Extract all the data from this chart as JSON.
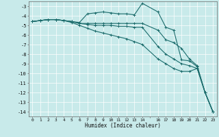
{
  "xlabel": "Humidex (Indice chaleur)",
  "bg_color": "#c8eaea",
  "grid_color": "#ffffff",
  "line_color": "#1a6b6b",
  "xlim": [
    -0.5,
    23.5
  ],
  "ylim": [
    -14.5,
    -2.5
  ],
  "yticks": [
    -3,
    -4,
    -5,
    -6,
    -7,
    -8,
    -9,
    -10,
    -11,
    -12,
    -13,
    -14
  ],
  "xtick_labels": [
    "0",
    "1",
    "2",
    "3",
    "4",
    "5",
    "6",
    "7",
    "8",
    "9",
    "10",
    "11",
    "12",
    "13",
    "14",
    "",
    "16",
    "17",
    "18",
    "19",
    "20",
    "21",
    "22",
    "23"
  ],
  "lines": [
    {
      "x": [
        0,
        1,
        2,
        3,
        4,
        5,
        6,
        7,
        8,
        9,
        10,
        11,
        12,
        13,
        14,
        16,
        17,
        18,
        19,
        20,
        21,
        22,
        23
      ],
      "y": [
        -4.6,
        -4.5,
        -4.4,
        -4.4,
        -4.5,
        -4.6,
        -4.7,
        -3.8,
        -3.7,
        -3.6,
        -3.7,
        -3.8,
        -3.8,
        -3.9,
        -2.7,
        -3.6,
        -5.2,
        -5.5,
        -8.6,
        -8.7,
        -9.3,
        -12.0,
        -14.0
      ]
    },
    {
      "x": [
        0,
        1,
        2,
        3,
        4,
        5,
        6,
        7,
        8,
        9,
        10,
        11,
        12,
        13,
        14,
        16,
        17,
        18,
        19,
        20,
        21,
        22,
        23
      ],
      "y": [
        -4.6,
        -4.5,
        -4.4,
        -4.4,
        -4.5,
        -4.6,
        -4.8,
        -4.8,
        -4.8,
        -4.8,
        -4.8,
        -4.8,
        -4.8,
        -4.8,
        -4.8,
        -5.5,
        -6.5,
        -6.8,
        -7.4,
        -8.5,
        -9.2,
        -12.0,
        -14.0
      ]
    },
    {
      "x": [
        0,
        1,
        2,
        3,
        4,
        5,
        6,
        7,
        8,
        9,
        10,
        11,
        12,
        13,
        14,
        16,
        17,
        18,
        19,
        20,
        21,
        22,
        23
      ],
      "y": [
        -4.6,
        -4.5,
        -4.4,
        -4.4,
        -4.5,
        -4.6,
        -4.8,
        -4.9,
        -5.0,
        -5.0,
        -5.0,
        -5.1,
        -5.1,
        -5.2,
        -5.2,
        -7.2,
        -8.0,
        -8.5,
        -9.0,
        -9.2,
        -9.5,
        -12.0,
        -14.0
      ]
    },
    {
      "x": [
        0,
        1,
        2,
        3,
        4,
        5,
        6,
        7,
        8,
        9,
        10,
        11,
        12,
        13,
        14,
        16,
        17,
        18,
        19,
        20,
        21,
        22,
        23
      ],
      "y": [
        -4.6,
        -4.5,
        -4.4,
        -4.4,
        -4.5,
        -4.7,
        -5.0,
        -5.3,
        -5.6,
        -5.8,
        -6.0,
        -6.2,
        -6.4,
        -6.7,
        -7.0,
        -8.5,
        -9.0,
        -9.5,
        -9.8,
        -9.8,
        -9.5,
        -12.0,
        -14.0
      ]
    }
  ]
}
